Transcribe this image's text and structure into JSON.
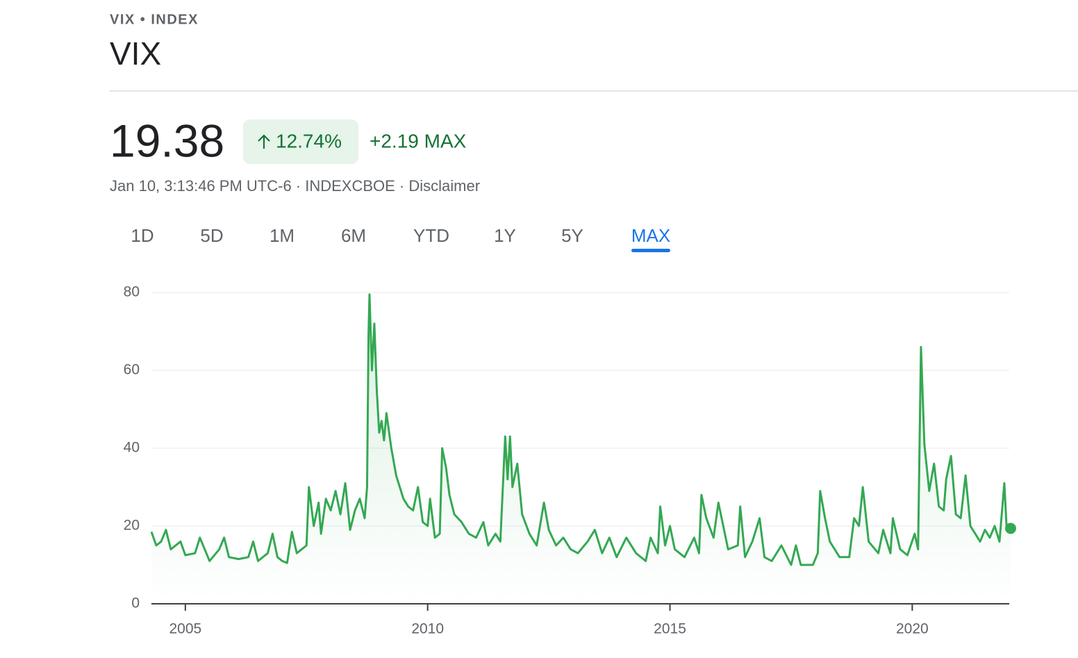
{
  "header": {
    "eyebrow": "VIX • INDEX",
    "title": "VIX",
    "price": "19.38",
    "change_percent": "12.74%",
    "change_abs": "+2.19 MAX",
    "meta": "Jan 10, 3:13:46 PM UTC-6 · INDEXCBOE · Disclaimer"
  },
  "tabs": {
    "items": [
      "1D",
      "5D",
      "1M",
      "6M",
      "YTD",
      "1Y",
      "5Y",
      "MAX"
    ],
    "active": 7
  },
  "chart_data": {
    "type": "line",
    "color": "#34a853",
    "grid": true,
    "xlim": [
      2004.3,
      2022.03
    ],
    "xticks": [
      2005,
      2010,
      2015,
      2020
    ],
    "ylim": [
      0,
      80
    ],
    "yticks": [
      0,
      20,
      40,
      60,
      80
    ],
    "x": [
      2004.3,
      2004.4,
      2004.5,
      2004.6,
      2004.7,
      2004.9,
      2005.0,
      2005.2,
      2005.3,
      2005.5,
      2005.7,
      2005.8,
      2005.9,
      2006.1,
      2006.3,
      2006.4,
      2006.5,
      2006.7,
      2006.8,
      2006.9,
      2007.0,
      2007.1,
      2007.2,
      2007.3,
      2007.4,
      2007.5,
      2007.55,
      2007.65,
      2007.75,
      2007.8,
      2007.9,
      2008.0,
      2008.1,
      2008.2,
      2008.3,
      2008.4,
      2008.5,
      2008.6,
      2008.7,
      2008.75,
      2008.78,
      2008.8,
      2008.85,
      2008.9,
      2008.95,
      2009.0,
      2009.05,
      2009.1,
      2009.15,
      2009.25,
      2009.35,
      2009.5,
      2009.6,
      2009.7,
      2009.8,
      2009.9,
      2010.0,
      2010.05,
      2010.15,
      2010.25,
      2010.3,
      2010.38,
      2010.45,
      2010.55,
      2010.7,
      2010.85,
      2011.0,
      2011.15,
      2011.25,
      2011.4,
      2011.5,
      2011.6,
      2011.65,
      2011.7,
      2011.75,
      2011.85,
      2011.95,
      2012.1,
      2012.25,
      2012.4,
      2012.5,
      2012.65,
      2012.8,
      2012.95,
      2013.1,
      2013.3,
      2013.45,
      2013.6,
      2013.75,
      2013.9,
      2014.1,
      2014.3,
      2014.5,
      2014.6,
      2014.75,
      2014.8,
      2014.9,
      2015.0,
      2015.1,
      2015.3,
      2015.5,
      2015.6,
      2015.65,
      2015.75,
      2015.9,
      2016.0,
      2016.1,
      2016.2,
      2016.4,
      2016.45,
      2016.55,
      2016.7,
      2016.85,
      2016.95,
      2017.1,
      2017.3,
      2017.5,
      2017.6,
      2017.7,
      2017.85,
      2017.95,
      2018.05,
      2018.1,
      2018.2,
      2018.3,
      2018.5,
      2018.7,
      2018.8,
      2018.9,
      2018.98,
      2019.1,
      2019.3,
      2019.4,
      2019.55,
      2019.6,
      2019.75,
      2019.9,
      2020.05,
      2020.12,
      2020.18,
      2020.25,
      2020.35,
      2020.45,
      2020.55,
      2020.65,
      2020.7,
      2020.8,
      2020.9,
      2021.0,
      2021.1,
      2021.2,
      2021.3,
      2021.4,
      2021.5,
      2021.6,
      2021.7,
      2021.8,
      2021.9,
      2021.95,
      2022.03
    ],
    "values": [
      18.5,
      15,
      16,
      19,
      14,
      16,
      12.5,
      13,
      17,
      11,
      14,
      17,
      12,
      11.5,
      12,
      16,
      11,
      13,
      18,
      12,
      11,
      10.5,
      18.5,
      13,
      14,
      15,
      30,
      20,
      26,
      18,
      27,
      24,
      29,
      23,
      31,
      19,
      24,
      27,
      22,
      30,
      69,
      79.5,
      60,
      72,
      55,
      44,
      47,
      42,
      49,
      40,
      33,
      27,
      25,
      24,
      30,
      21,
      20,
      27,
      17,
      18,
      40,
      35,
      28,
      23,
      21,
      18,
      17,
      21,
      15,
      18,
      16,
      43,
      32,
      43,
      30,
      36,
      23,
      18,
      15,
      26,
      19,
      15,
      17,
      14,
      13,
      16,
      19,
      13,
      17,
      12,
      17,
      13,
      11,
      17,
      13,
      25,
      15,
      20,
      14,
      12,
      17,
      13,
      28,
      22,
      17,
      26,
      20,
      14,
      15,
      25,
      12,
      16,
      22,
      12,
      11,
      15,
      10,
      15,
      10,
      10,
      10,
      13,
      29,
      22,
      16,
      12,
      12,
      22,
      20,
      30,
      16,
      13,
      19,
      13,
      22,
      14,
      12.5,
      18,
      14,
      66,
      41,
      29,
      36,
      25,
      24,
      32,
      38,
      23,
      22,
      33,
      20,
      18,
      16,
      19,
      17,
      20,
      16,
      31,
      19,
      19.38
    ]
  }
}
